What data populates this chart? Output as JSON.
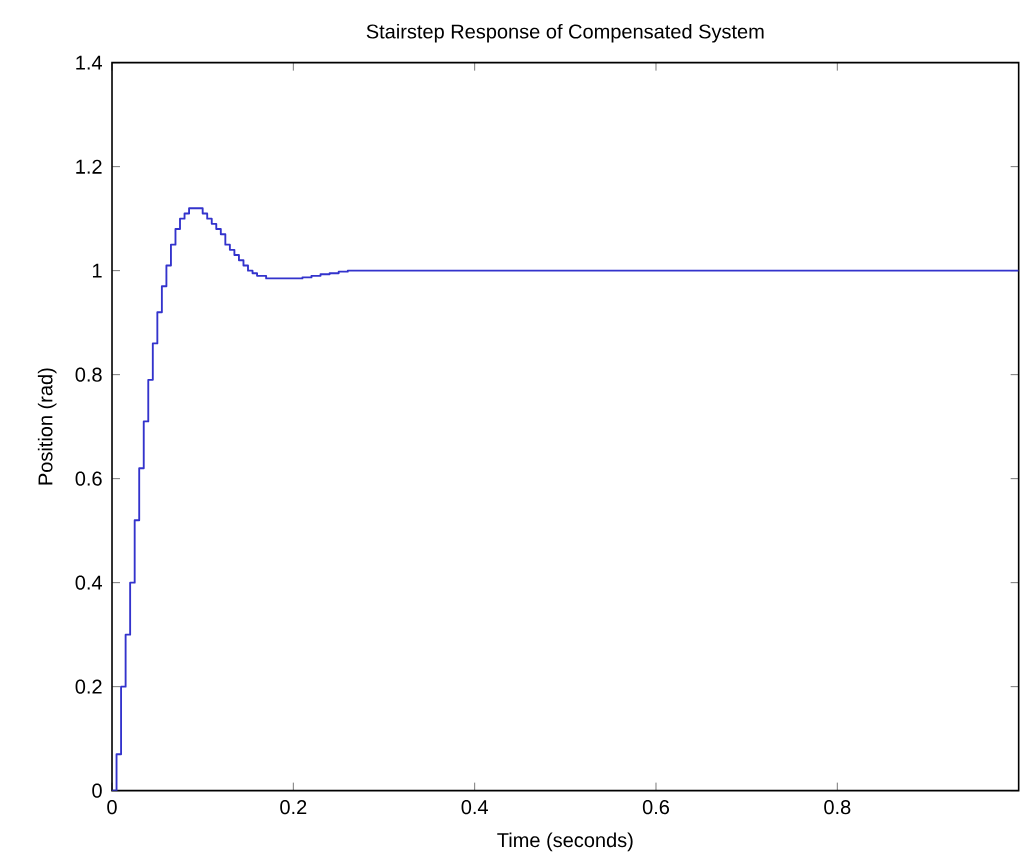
{
  "chart_data": {
    "type": "step",
    "title": "Stairstep Response of Compensated System",
    "xlabel": "Time (seconds)",
    "ylabel": "Position (rad)",
    "x": [
      0,
      0.005,
      0.01,
      0.015,
      0.02,
      0.025,
      0.03,
      0.035,
      0.04,
      0.045,
      0.05,
      0.055,
      0.06,
      0.065,
      0.07,
      0.075,
      0.08,
      0.085,
      0.09,
      0.095,
      0.1,
      0.105,
      0.11,
      0.115,
      0.12,
      0.125,
      0.13,
      0.135,
      0.14,
      0.145,
      0.15,
      0.155,
      0.16,
      0.165,
      0.17,
      0.175,
      0.18,
      0.19,
      0.2,
      0.21,
      0.22,
      0.23,
      0.24,
      0.25,
      0.26,
      1.0
    ],
    "values": [
      0,
      0.07,
      0.2,
      0.3,
      0.4,
      0.52,
      0.62,
      0.71,
      0.79,
      0.86,
      0.92,
      0.97,
      1.01,
      1.05,
      1.08,
      1.1,
      1.11,
      1.12,
      1.12,
      1.12,
      1.11,
      1.1,
      1.09,
      1.08,
      1.07,
      1.05,
      1.04,
      1.03,
      1.02,
      1.01,
      1.0,
      0.995,
      0.99,
      0.99,
      0.985,
      0.985,
      0.985,
      0.985,
      0.985,
      0.987,
      0.99,
      0.993,
      0.995,
      0.998,
      1.0,
      1.0
    ],
    "color": "#3333cc",
    "xlim": [
      0,
      1
    ],
    "ylim": [
      0,
      1.4
    ],
    "xticks": [
      0,
      0.2,
      0.4,
      0.6,
      0.8
    ],
    "yticks": [
      0,
      0.2,
      0.4,
      0.6,
      0.8,
      1,
      1.2,
      1.4
    ]
  }
}
